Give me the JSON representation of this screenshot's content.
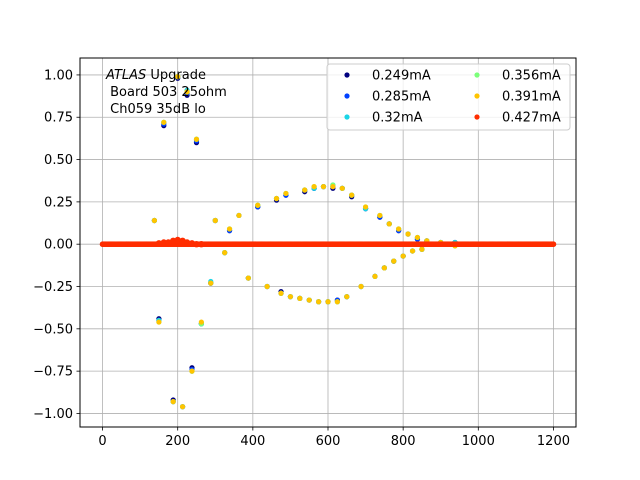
{
  "chart_data": {
    "type": "scatter",
    "title": "",
    "xlabel": "",
    "ylabel": "",
    "xlim": [
      -60,
      1260
    ],
    "ylim": [
      -1.08,
      1.1
    ],
    "grid": true,
    "legend_placement": "top-right",
    "legend_columns": 2,
    "xticks": [
      0,
      200,
      400,
      600,
      800,
      1000,
      1200
    ],
    "yticks": [
      -1.0,
      -0.75,
      -0.5,
      -0.25,
      0.0,
      0.25,
      0.5,
      0.75,
      1.0
    ],
    "xtick_labels": [
      "0",
      "200",
      "400",
      "600",
      "800",
      "1000",
      "1200"
    ],
    "ytick_labels": [
      "−1.00",
      "−0.75",
      "−0.50",
      "−0.25",
      "0.00",
      "0.25",
      "0.50",
      "0.75",
      "1.00"
    ],
    "annotation": {
      "line1_italic": "ATLAS",
      "line1_rest": " Upgrade",
      "line2": " Board 503 25ohm",
      "line3": " Ch059 35dB lo"
    },
    "series": [
      {
        "name": "0.249mA",
        "color": "#00007f",
        "points": [
          [
            138,
            0.14
          ],
          [
            150,
            -0.44
          ],
          [
            163,
            0.7
          ],
          [
            188,
            -0.92
          ],
          [
            200,
            0.98
          ],
          [
            213,
            -0.96
          ],
          [
            225,
            0.88
          ],
          [
            238,
            -0.73
          ],
          [
            250,
            0.6
          ],
          [
            263,
            -0.47
          ],
          [
            288,
            -0.23
          ],
          [
            300,
            0.14
          ],
          [
            325,
            -0.05
          ],
          [
            338,
            0.08
          ],
          [
            363,
            0.17
          ],
          [
            388,
            -0.2
          ],
          [
            413,
            0.22
          ],
          [
            438,
            -0.25
          ],
          [
            463,
            0.26
          ],
          [
            475,
            -0.28
          ],
          [
            488,
            0.29
          ],
          [
            500,
            -0.31
          ],
          [
            525,
            -0.32
          ],
          [
            538,
            0.31
          ],
          [
            550,
            -0.33
          ],
          [
            563,
            0.33
          ],
          [
            575,
            -0.34
          ],
          [
            588,
            0.34
          ],
          [
            600,
            -0.34
          ],
          [
            613,
            0.33
          ],
          [
            625,
            -0.33
          ],
          [
            638,
            0.33
          ],
          [
            650,
            -0.31
          ],
          [
            663,
            0.28
          ],
          [
            688,
            -0.25
          ],
          [
            700,
            0.21
          ],
          [
            725,
            -0.19
          ],
          [
            738,
            0.16
          ],
          [
            750,
            -0.14
          ],
          [
            763,
            0.12
          ],
          [
            775,
            -0.1
          ],
          [
            788,
            0.08
          ],
          [
            800,
            -0.07
          ],
          [
            813,
            0.06
          ],
          [
            825,
            -0.04
          ],
          [
            838,
            0.03
          ],
          [
            850,
            -0.03
          ],
          [
            863,
            0.02
          ],
          [
            900,
            0.01
          ],
          [
            938,
            0.01
          ]
        ]
      },
      {
        "name": "0.285mA",
        "color": "#0040ff",
        "points": [
          [
            138,
            0.14
          ],
          [
            150,
            -0.45
          ],
          [
            163,
            0.71
          ],
          [
            188,
            -0.93
          ],
          [
            200,
            0.99
          ],
          [
            213,
            -0.96
          ],
          [
            225,
            0.89
          ],
          [
            238,
            -0.74
          ],
          [
            250,
            0.61
          ],
          [
            263,
            -0.47
          ],
          [
            288,
            -0.23
          ],
          [
            300,
            0.14
          ],
          [
            325,
            -0.05
          ],
          [
            338,
            0.08
          ],
          [
            363,
            0.17
          ],
          [
            388,
            -0.2
          ],
          [
            413,
            0.22
          ],
          [
            438,
            -0.25
          ],
          [
            463,
            0.27
          ],
          [
            475,
            -0.29
          ],
          [
            488,
            0.29
          ],
          [
            500,
            -0.31
          ],
          [
            525,
            -0.32
          ],
          [
            538,
            0.32
          ],
          [
            550,
            -0.33
          ],
          [
            563,
            0.33
          ],
          [
            575,
            -0.34
          ],
          [
            588,
            0.34
          ],
          [
            600,
            -0.34
          ],
          [
            613,
            0.34
          ],
          [
            625,
            -0.33
          ],
          [
            638,
            0.33
          ],
          [
            650,
            -0.31
          ],
          [
            663,
            0.29
          ],
          [
            688,
            -0.25
          ],
          [
            700,
            0.21
          ],
          [
            725,
            -0.19
          ],
          [
            738,
            0.16
          ],
          [
            750,
            -0.14
          ],
          [
            763,
            0.12
          ],
          [
            775,
            -0.1
          ],
          [
            788,
            0.08
          ],
          [
            800,
            -0.07
          ],
          [
            813,
            0.06
          ],
          [
            825,
            -0.04
          ],
          [
            838,
            0.03
          ],
          [
            850,
            -0.03
          ],
          [
            863,
            0.02
          ],
          [
            900,
            0.01
          ],
          [
            938,
            0.01
          ]
        ]
      },
      {
        "name": "0.32mA",
        "color": "#1ad5e6",
        "points": [
          [
            138,
            0.14
          ],
          [
            150,
            -0.45
          ],
          [
            163,
            0.72
          ],
          [
            188,
            -0.93
          ],
          [
            200,
            0.99
          ],
          [
            213,
            -0.96
          ],
          [
            225,
            0.91
          ],
          [
            238,
            -0.75
          ],
          [
            250,
            0.62
          ],
          [
            263,
            -0.47
          ],
          [
            288,
            -0.22
          ],
          [
            300,
            0.14
          ],
          [
            325,
            -0.05
          ],
          [
            338,
            0.09
          ],
          [
            363,
            0.17
          ],
          [
            388,
            -0.2
          ],
          [
            413,
            0.23
          ],
          [
            438,
            -0.25
          ],
          [
            463,
            0.27
          ],
          [
            475,
            -0.29
          ],
          [
            488,
            0.3
          ],
          [
            500,
            -0.31
          ],
          [
            525,
            -0.32
          ],
          [
            538,
            0.32
          ],
          [
            550,
            -0.33
          ],
          [
            563,
            0.33
          ],
          [
            575,
            -0.34
          ],
          [
            588,
            0.34
          ],
          [
            600,
            -0.34
          ],
          [
            613,
            0.35
          ],
          [
            625,
            -0.34
          ],
          [
            638,
            0.33
          ],
          [
            650,
            -0.31
          ],
          [
            663,
            0.29
          ],
          [
            688,
            -0.25
          ],
          [
            700,
            0.21
          ],
          [
            725,
            -0.19
          ],
          [
            738,
            0.17
          ],
          [
            750,
            -0.14
          ],
          [
            763,
            0.12
          ],
          [
            775,
            -0.1
          ],
          [
            788,
            0.09
          ],
          [
            800,
            -0.07
          ],
          [
            813,
            0.06
          ],
          [
            825,
            -0.04
          ],
          [
            838,
            0.04
          ],
          [
            850,
            -0.03
          ],
          [
            863,
            0.02
          ],
          [
            900,
            0.01
          ],
          [
            938,
            0.01
          ]
        ]
      },
      {
        "name": "0.356mA",
        "color": "#7cff7a",
        "points": [
          [
            138,
            0.14
          ],
          [
            150,
            -0.46
          ],
          [
            163,
            0.72
          ],
          [
            188,
            -0.93
          ],
          [
            200,
            0.99
          ],
          [
            213,
            -0.96
          ],
          [
            225,
            0.9
          ],
          [
            238,
            -0.75
          ],
          [
            250,
            0.62
          ],
          [
            263,
            -0.47
          ],
          [
            288,
            -0.23
          ],
          [
            300,
            0.14
          ],
          [
            325,
            -0.05
          ],
          [
            338,
            0.09
          ],
          [
            363,
            0.17
          ],
          [
            388,
            -0.2
          ],
          [
            413,
            0.23
          ],
          [
            438,
            -0.25
          ],
          [
            463,
            0.27
          ],
          [
            475,
            -0.29
          ],
          [
            488,
            0.3
          ],
          [
            500,
            -0.31
          ],
          [
            525,
            -0.32
          ],
          [
            538,
            0.32
          ],
          [
            550,
            -0.33
          ],
          [
            563,
            0.34
          ],
          [
            575,
            -0.34
          ],
          [
            588,
            0.34
          ],
          [
            600,
            -0.34
          ],
          [
            613,
            0.35
          ],
          [
            625,
            -0.34
          ],
          [
            638,
            0.33
          ],
          [
            650,
            -0.31
          ],
          [
            663,
            0.29
          ],
          [
            688,
            -0.25
          ],
          [
            700,
            0.22
          ],
          [
            725,
            -0.19
          ],
          [
            738,
            0.17
          ],
          [
            750,
            -0.14
          ],
          [
            763,
            0.12
          ],
          [
            775,
            -0.1
          ],
          [
            788,
            0.09
          ],
          [
            800,
            -0.07
          ],
          [
            813,
            0.06
          ],
          [
            825,
            -0.04
          ],
          [
            838,
            0.04
          ],
          [
            850,
            -0.03
          ],
          [
            863,
            0.02
          ],
          [
            900,
            0.01
          ],
          [
            938,
            -0.01
          ]
        ]
      },
      {
        "name": "0.391mA",
        "color": "#ffc400",
        "points": [
          [
            138,
            0.14
          ],
          [
            150,
            -0.46
          ],
          [
            163,
            0.72
          ],
          [
            188,
            -0.93
          ],
          [
            200,
            0.99
          ],
          [
            213,
            -0.96
          ],
          [
            225,
            0.9
          ],
          [
            238,
            -0.75
          ],
          [
            250,
            0.62
          ],
          [
            263,
            -0.46
          ],
          [
            288,
            -0.23
          ],
          [
            300,
            0.14
          ],
          [
            325,
            -0.05
          ],
          [
            338,
            0.09
          ],
          [
            363,
            0.17
          ],
          [
            388,
            -0.2
          ],
          [
            413,
            0.23
          ],
          [
            438,
            -0.25
          ],
          [
            463,
            0.27
          ],
          [
            475,
            -0.29
          ],
          [
            488,
            0.3
          ],
          [
            500,
            -0.31
          ],
          [
            525,
            -0.32
          ],
          [
            538,
            0.32
          ],
          [
            550,
            -0.33
          ],
          [
            563,
            0.34
          ],
          [
            575,
            -0.34
          ],
          [
            588,
            0.34
          ],
          [
            600,
            -0.34
          ],
          [
            613,
            0.34
          ],
          [
            625,
            -0.34
          ],
          [
            638,
            0.33
          ],
          [
            650,
            -0.31
          ],
          [
            663,
            0.29
          ],
          [
            688,
            -0.25
          ],
          [
            700,
            0.22
          ],
          [
            725,
            -0.19
          ],
          [
            738,
            0.17
          ],
          [
            750,
            -0.14
          ],
          [
            763,
            0.12
          ],
          [
            775,
            -0.1
          ],
          [
            788,
            0.09
          ],
          [
            800,
            -0.07
          ],
          [
            813,
            0.06
          ],
          [
            825,
            -0.04
          ],
          [
            838,
            0.04
          ],
          [
            850,
            -0.03
          ],
          [
            863,
            0.02
          ],
          [
            900,
            0.01
          ],
          [
            938,
            -0.01
          ]
        ]
      },
      {
        "name": "0.427mA",
        "color": "#ff2d00",
        "points": [
          [
            150,
            0.005
          ],
          [
            163,
            0.01
          ],
          [
            175,
            0.01
          ],
          [
            188,
            0.02
          ],
          [
            200,
            0.025
          ],
          [
            213,
            0.02
          ],
          [
            225,
            0.01
          ],
          [
            238,
            0.005
          ],
          [
            250,
            0.0
          ],
          [
            263,
            0.0
          ]
        ]
      }
    ],
    "baseline": {
      "note_values_at_zero": true,
      "x_start": 0,
      "x_end": 1200,
      "x_step": 6,
      "y": 0.0
    }
  }
}
